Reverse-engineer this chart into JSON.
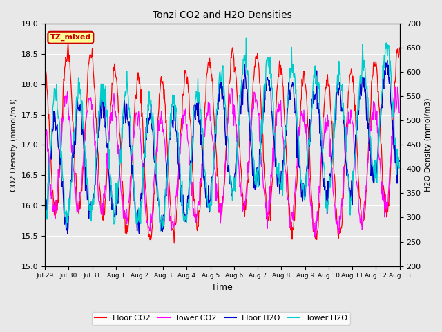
{
  "title": "Tonzi CO2 and H2O Densities",
  "xlabel": "Time",
  "ylabel_left": "CO2 Density (mmol/m3)",
  "ylabel_right": "H2O Density (mmol/m3)",
  "ylim_left": [
    15.0,
    19.0
  ],
  "ylim_right": [
    200,
    700
  ],
  "xtick_labels": [
    "Jul 29",
    "Jul 30",
    "Jul 31",
    "Aug 1",
    "Aug 2",
    "Aug 3",
    "Aug 4",
    "Aug 5",
    "Aug 6",
    "Aug 7",
    "Aug 8",
    "Aug 9",
    "Aug 10",
    "Aug 11",
    "Aug 12",
    "Aug 13"
  ],
  "annotation_text": "TZ_mixed",
  "annotation_color": "#cc0000",
  "annotation_bg": "#ffff99",
  "floor_co2_color": "#ff0000",
  "tower_co2_color": "#ff00ff",
  "floor_h2o_color": "#0000cc",
  "tower_h2o_color": "#00cccc",
  "legend_labels": [
    "Floor CO2",
    "Tower CO2",
    "Floor H2O",
    "Tower H2O"
  ],
  "background_color": "#e8e8e8",
  "plot_bg_color": "#e8e8e8",
  "n_days": 15,
  "points_per_day": 48
}
